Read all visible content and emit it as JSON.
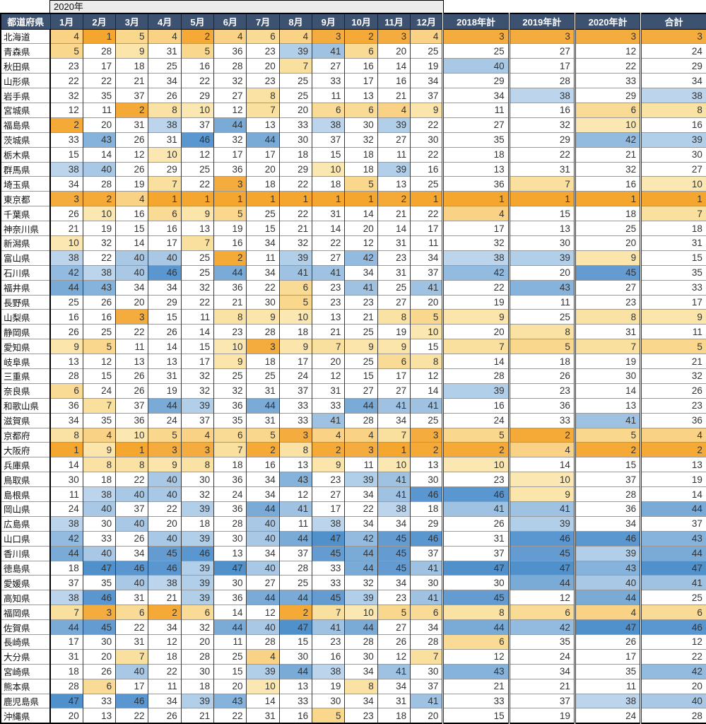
{
  "chart_data": {
    "type": "heatmap",
    "title": "2020年",
    "columns": [
      "都道府県",
      "1月",
      "2月",
      "3月",
      "4月",
      "5月",
      "6月",
      "7月",
      "8月",
      "9月",
      "10月",
      "11月",
      "12月",
      "2018年計",
      "2019年計",
      "2020年計",
      "合計"
    ],
    "value_range": [
      1,
      47
    ],
    "rows": [
      {
        "name": "北海道",
        "values": [
          4,
          1,
          5,
          4,
          2,
          4,
          6,
          4,
          3,
          2,
          3,
          4,
          3,
          3,
          3,
          3
        ]
      },
      {
        "name": "青森県",
        "values": [
          5,
          28,
          9,
          31,
          5,
          36,
          23,
          39,
          41,
          6,
          20,
          25,
          25,
          27,
          12,
          24
        ]
      },
      {
        "name": "秋田県",
        "values": [
          23,
          17,
          18,
          25,
          16,
          28,
          20,
          7,
          27,
          16,
          14,
          19,
          40,
          17,
          22,
          29
        ]
      },
      {
        "name": "山形県",
        "values": [
          22,
          22,
          21,
          34,
          22,
          32,
          23,
          25,
          33,
          17,
          16,
          34,
          29,
          28,
          33,
          34
        ]
      },
      {
        "name": "岩手県",
        "values": [
          32,
          35,
          37,
          26,
          29,
          27,
          8,
          25,
          11,
          13,
          21,
          37,
          34,
          38,
          29,
          38
        ]
      },
      {
        "name": "宮城県",
        "values": [
          12,
          11,
          2,
          8,
          10,
          12,
          7,
          20,
          6,
          6,
          4,
          9,
          11,
          16,
          6,
          8
        ]
      },
      {
        "name": "福島県",
        "values": [
          2,
          20,
          31,
          38,
          37,
          44,
          13,
          33,
          38,
          30,
          39,
          22,
          27,
          32,
          10,
          16
        ]
      },
      {
        "name": "茨城県",
        "values": [
          33,
          43,
          26,
          31,
          46,
          32,
          44,
          30,
          37,
          32,
          27,
          30,
          35,
          29,
          42,
          39
        ]
      },
      {
        "name": "栃木県",
        "values": [
          15,
          14,
          12,
          10,
          12,
          17,
          17,
          18,
          15,
          18,
          11,
          22,
          18,
          22,
          21,
          30
        ]
      },
      {
        "name": "群馬県",
        "values": [
          38,
          40,
          26,
          29,
          25,
          36,
          20,
          29,
          10,
          18,
          39,
          16,
          13,
          31,
          32,
          27
        ]
      },
      {
        "name": "埼玉県",
        "values": [
          34,
          28,
          19,
          7,
          22,
          3,
          18,
          22,
          18,
          5,
          13,
          25,
          36,
          7,
          16,
          10
        ]
      },
      {
        "name": "東京都",
        "values": [
          3,
          2,
          4,
          1,
          1,
          1,
          1,
          1,
          1,
          1,
          2,
          1,
          1,
          1,
          1,
          1
        ]
      },
      {
        "name": "千葉県",
        "values": [
          26,
          10,
          16,
          6,
          9,
          5,
          25,
          22,
          31,
          14,
          21,
          22,
          4,
          15,
          18,
          7
        ]
      },
      {
        "name": "神奈川県",
        "values": [
          21,
          19,
          15,
          16,
          13,
          19,
          15,
          21,
          14,
          20,
          14,
          17,
          17,
          13,
          25,
          18
        ]
      },
      {
        "name": "新潟県",
        "values": [
          10,
          32,
          14,
          17,
          7,
          16,
          34,
          32,
          22,
          12,
          31,
          11,
          32,
          30,
          20,
          31
        ]
      },
      {
        "name": "富山県",
        "values": [
          38,
          22,
          40,
          40,
          25,
          2,
          11,
          39,
          27,
          42,
          23,
          34,
          38,
          39,
          9,
          15
        ]
      },
      {
        "name": "石川県",
        "values": [
          42,
          38,
          40,
          46,
          25,
          44,
          34,
          41,
          41,
          34,
          31,
          37,
          42,
          20,
          45,
          35
        ]
      },
      {
        "name": "福井県",
        "values": [
          44,
          43,
          34,
          34,
          32,
          36,
          22,
          6,
          23,
          41,
          25,
          41,
          22,
          43,
          27,
          33
        ]
      },
      {
        "name": "長野県",
        "values": [
          25,
          26,
          20,
          29,
          22,
          21,
          30,
          5,
          23,
          23,
          27,
          20,
          19,
          11,
          23,
          17
        ]
      },
      {
        "name": "山梨県",
        "values": [
          16,
          16,
          3,
          15,
          11,
          8,
          9,
          10,
          13,
          21,
          8,
          5,
          9,
          25,
          8,
          9
        ]
      },
      {
        "name": "静岡県",
        "values": [
          26,
          25,
          22,
          26,
          14,
          23,
          28,
          18,
          21,
          25,
          19,
          10,
          20,
          8,
          31,
          11
        ]
      },
      {
        "name": "愛知県",
        "values": [
          9,
          5,
          11,
          14,
          15,
          10,
          3,
          9,
          7,
          9,
          9,
          15,
          7,
          5,
          7,
          5
        ]
      },
      {
        "name": "岐阜県",
        "values": [
          13,
          12,
          13,
          13,
          17,
          9,
          18,
          17,
          20,
          25,
          6,
          8,
          14,
          18,
          19,
          21
        ]
      },
      {
        "name": "三重県",
        "values": [
          28,
          15,
          26,
          31,
          32,
          25,
          25,
          24,
          12,
          15,
          17,
          12,
          28,
          26,
          30,
          32
        ]
      },
      {
        "name": "奈良県",
        "values": [
          6,
          24,
          26,
          19,
          32,
          32,
          31,
          37,
          31,
          27,
          27,
          14,
          39,
          23,
          14,
          26
        ]
      },
      {
        "name": "和歌山県",
        "values": [
          36,
          7,
          37,
          44,
          39,
          36,
          44,
          33,
          33,
          44,
          41,
          41,
          16,
          36,
          13,
          23
        ]
      },
      {
        "name": "滋賀県",
        "values": [
          34,
          35,
          36,
          24,
          37,
          35,
          31,
          33,
          41,
          28,
          34,
          25,
          24,
          33,
          41,
          36
        ]
      },
      {
        "name": "京都府",
        "values": [
          8,
          4,
          10,
          5,
          4,
          6,
          5,
          3,
          4,
          4,
          7,
          3,
          5,
          2,
          5,
          4
        ]
      },
      {
        "name": "大阪府",
        "values": [
          1,
          9,
          1,
          3,
          3,
          7,
          2,
          8,
          2,
          3,
          1,
          2,
          2,
          4,
          2,
          2
        ]
      },
      {
        "name": "兵庫県",
        "values": [
          14,
          8,
          8,
          9,
          8,
          18,
          16,
          13,
          9,
          11,
          10,
          13,
          10,
          14,
          15,
          13
        ]
      },
      {
        "name": "鳥取県",
        "values": [
          30,
          18,
          22,
          40,
          30,
          36,
          34,
          43,
          23,
          39,
          41,
          30,
          23,
          10,
          37,
          19
        ]
      },
      {
        "name": "島根県",
        "values": [
          11,
          38,
          40,
          40,
          32,
          24,
          34,
          12,
          27,
          34,
          41,
          46,
          46,
          9,
          28,
          14
        ]
      },
      {
        "name": "岡山県",
        "values": [
          24,
          40,
          37,
          22,
          39,
          36,
          44,
          41,
          17,
          22,
          38,
          18,
          41,
          41,
          36,
          44
        ]
      },
      {
        "name": "広島県",
        "values": [
          38,
          30,
          40,
          20,
          18,
          28,
          40,
          11,
          38,
          34,
          34,
          29,
          26,
          39,
          34,
          37
        ]
      },
      {
        "name": "山口県",
        "values": [
          42,
          33,
          26,
          40,
          39,
          30,
          40,
          44,
          47,
          42,
          45,
          46,
          31,
          46,
          46,
          43
        ]
      },
      {
        "name": "香川県",
        "values": [
          44,
          40,
          34,
          45,
          46,
          13,
          34,
          37,
          45,
          44,
          45,
          37,
          37,
          45,
          39,
          44
        ]
      },
      {
        "name": "徳島県",
        "values": [
          18,
          47,
          46,
          46,
          39,
          47,
          40,
          28,
          33,
          44,
          45,
          41,
          47,
          47,
          43,
          47
        ]
      },
      {
        "name": "愛媛県",
        "values": [
          37,
          35,
          40,
          38,
          39,
          30,
          27,
          25,
          33,
          32,
          34,
          30,
          30,
          44,
          40,
          41
        ]
      },
      {
        "name": "高知県",
        "values": [
          38,
          46,
          31,
          21,
          39,
          36,
          44,
          44,
          45,
          39,
          23,
          41,
          45,
          12,
          44,
          25
        ]
      },
      {
        "name": "福岡県",
        "values": [
          7,
          3,
          6,
          2,
          6,
          14,
          12,
          2,
          7,
          10,
          5,
          6,
          8,
          6,
          4,
          6
        ]
      },
      {
        "name": "佐賀県",
        "values": [
          44,
          45,
          22,
          34,
          32,
          44,
          40,
          47,
          41,
          44,
          27,
          34,
          44,
          42,
          47,
          46
        ]
      },
      {
        "name": "長崎県",
        "values": [
          17,
          30,
          31,
          12,
          20,
          11,
          28,
          15,
          23,
          28,
          26,
          28,
          6,
          35,
          26,
          12
        ]
      },
      {
        "name": "大分県",
        "values": [
          31,
          20,
          7,
          18,
          28,
          25,
          4,
          30,
          16,
          30,
          12,
          7,
          12,
          24,
          17,
          22
        ]
      },
      {
        "name": "宮崎県",
        "values": [
          18,
          26,
          40,
          22,
          30,
          15,
          39,
          44,
          38,
          34,
          41,
          30,
          43,
          34,
          35,
          42
        ]
      },
      {
        "name": "熊本県",
        "values": [
          28,
          6,
          17,
          11,
          18,
          20,
          10,
          13,
          19,
          8,
          34,
          37,
          21,
          21,
          11,
          20
        ]
      },
      {
        "name": "鹿児島県",
        "values": [
          47,
          33,
          46,
          34,
          39,
          43,
          14,
          33,
          30,
          34,
          31,
          41,
          33,
          37,
          38,
          40
        ]
      },
      {
        "name": "沖縄県",
        "values": [
          20,
          13,
          22,
          26,
          21,
          22,
          31,
          16,
          5,
          23,
          18,
          20,
          15,
          19,
          24,
          28
        ]
      }
    ]
  },
  "colors": {
    "header_bg": "#3D5170",
    "header_text": "#FFFFFF",
    "year_bar_bg": "#ECECEC",
    "cell_text": "#333333",
    "scale_stops": [
      [
        1,
        "#F4A62E"
      ],
      [
        3,
        "#F5AC3E"
      ],
      [
        4,
        "#F9D285"
      ],
      [
        7,
        "#FAE09E"
      ],
      [
        10,
        "#FBE7B1"
      ],
      [
        11,
        "#FFFFFF"
      ],
      [
        37,
        "#FFFFFF"
      ],
      [
        38,
        "#BCD5EC"
      ],
      [
        41,
        "#9FC2E3"
      ],
      [
        44,
        "#7AABD7"
      ],
      [
        45,
        "#649CD2"
      ],
      [
        47,
        "#5090CB"
      ]
    ]
  }
}
